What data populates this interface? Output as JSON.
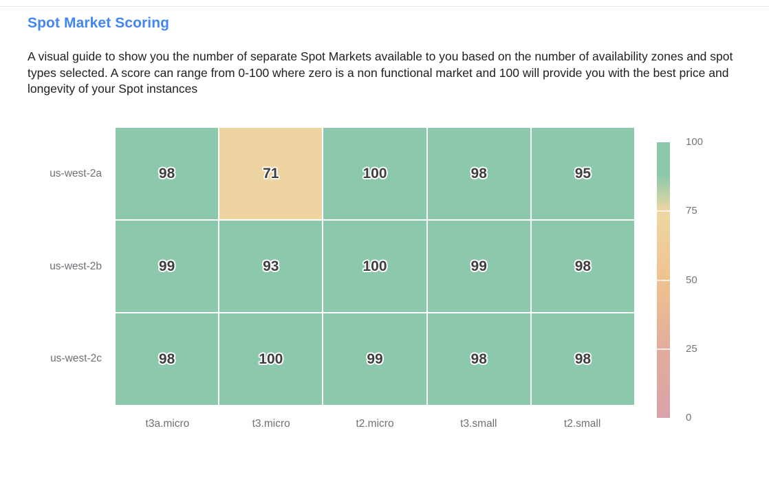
{
  "header": {
    "title": "Spot Market Scoring",
    "description": "A visual guide to show you the number of separate Spot Markets available to you based on the number of availability zones and spot types selected. A score can range from 0-100 where zero is a non functional market and 100 will provide you with the best price and longevity of your Spot instances"
  },
  "colors": {
    "title_accent": "#4285f4",
    "heatmap_green": "#8cc9ac",
    "heatmap_tan": "#f0d49c",
    "cell_value_text": "#3f3f3f",
    "axis_label": "#6e7075",
    "divider": "#e7e7e7"
  },
  "chart_data": {
    "type": "heatmap",
    "title": "Spot Market Scoring",
    "x_categories": [
      "t3a.micro",
      "t3.micro",
      "t2.micro",
      "t3.small",
      "t2.small"
    ],
    "y_categories": [
      "us-west-2a",
      "us-west-2b",
      "us-west-2c"
    ],
    "values": [
      [
        98,
        71,
        100,
        98,
        95
      ],
      [
        99,
        93,
        100,
        99,
        98
      ],
      [
        98,
        100,
        99,
        98,
        98
      ]
    ],
    "value_range": [
      0,
      100
    ],
    "colorbar_ticks": [
      100,
      75,
      50,
      25,
      0
    ],
    "color_stops": [
      {
        "value": 0,
        "color": "#d9a3aa"
      },
      {
        "value": 25,
        "color": "#e3ac9c"
      },
      {
        "value": 50,
        "color": "#efc290"
      },
      {
        "value": 75,
        "color": "#eed7a3"
      },
      {
        "value": 88,
        "color": "#8cc9ac"
      },
      {
        "value": 100,
        "color": "#8cc9ac"
      }
    ],
    "legend_position": "right",
    "grid": false
  }
}
